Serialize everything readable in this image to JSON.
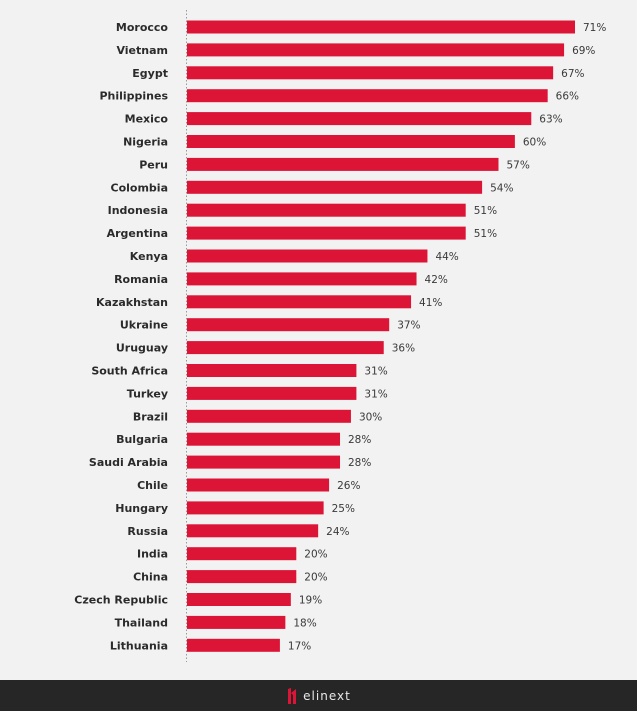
{
  "chart_data": {
    "type": "bar",
    "orientation": "horizontal",
    "categories": [
      "Morocco",
      "Vietnam",
      "Egypt",
      "Philippines",
      "Mexico",
      "Nigeria",
      "Peru",
      "Colombia",
      "Indonesia",
      "Argentina",
      "Kenya",
      "Romania",
      "Kazakhstan",
      "Ukraine",
      "Uruguay",
      "South Africa",
      "Turkey",
      "Brazil",
      "Bulgaria",
      "Saudi Arabia",
      "Chile",
      "Hungary",
      "Russia",
      "India",
      "China",
      "Czech Republic",
      "Thailand",
      "Lithuania"
    ],
    "values": [
      71,
      69,
      67,
      66,
      63,
      60,
      57,
      54,
      51,
      51,
      44,
      42,
      41,
      37,
      36,
      31,
      31,
      30,
      28,
      28,
      26,
      25,
      24,
      20,
      20,
      19,
      18,
      17
    ],
    "value_suffix": "%",
    "xlim": [
      0,
      71
    ],
    "grid": false,
    "bar_color": "#dc1537",
    "background": "#f2f2f2"
  },
  "footer": {
    "logo_text": "elinext",
    "background": "#262626"
  }
}
